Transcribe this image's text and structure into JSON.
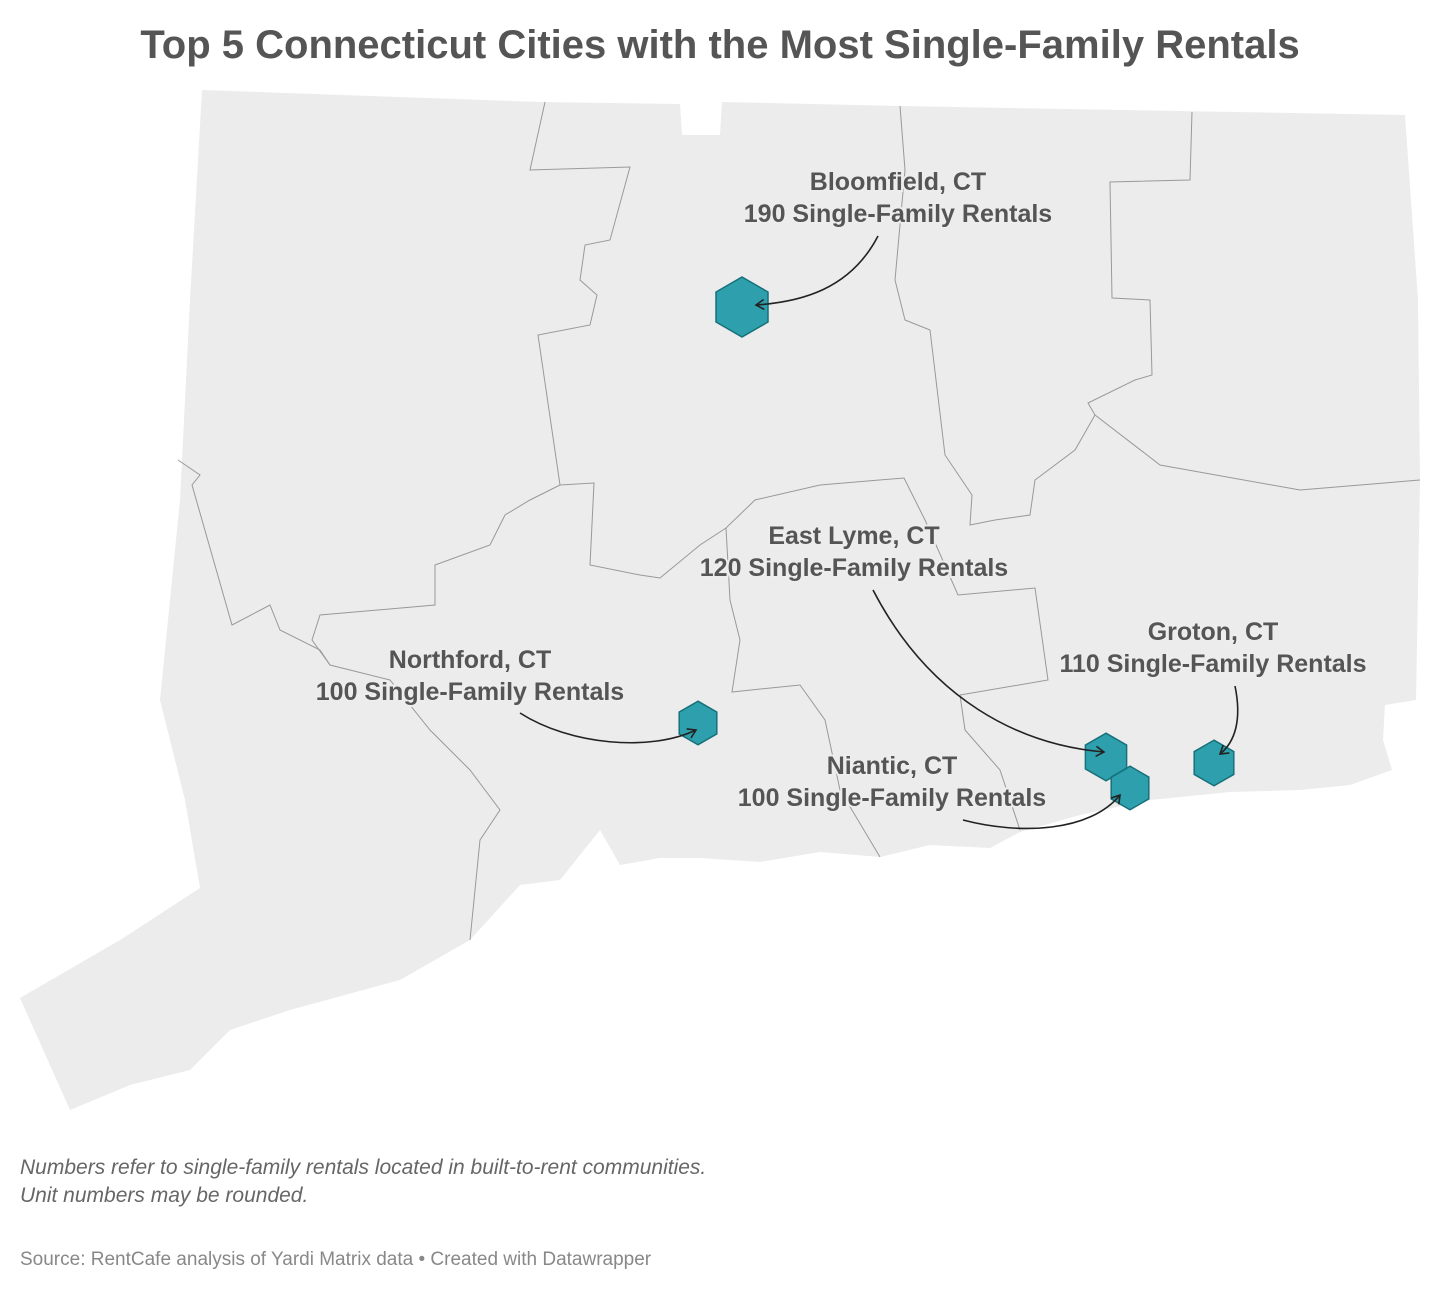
{
  "title": "Top 5 Connecticut Cities with the Most Single-Family Rentals",
  "markers": [
    {
      "city": "Bloomfield, CT",
      "value": 190,
      "value_label": "190 Single-Family Rentals"
    },
    {
      "city": "East Lyme, CT",
      "value": 120,
      "value_label": "120 Single-Family Rentals"
    },
    {
      "city": "Groton, CT",
      "value": 110,
      "value_label": "110 Single-Family Rentals"
    },
    {
      "city": "Northford, CT",
      "value": 100,
      "value_label": "100 Single-Family Rentals"
    },
    {
      "city": "Niantic, CT",
      "value": 100,
      "value_label": "100 Single-Family Rentals"
    }
  ],
  "notes": [
    "Numbers refer to single-family rentals located in built-to-rent communities.",
    "Unit numbers may be rounded."
  ],
  "source": "Source: RentCafe analysis of Yardi Matrix data • Created with Datawrapper"
}
